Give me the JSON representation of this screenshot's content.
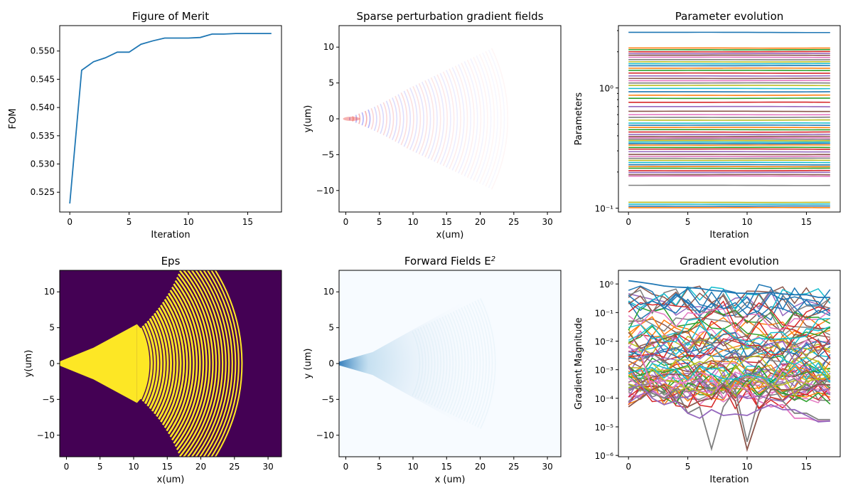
{
  "chart_data": [
    {
      "type": "line",
      "title": "Figure of Merit",
      "xlabel": "Iteration",
      "ylabel": "FOM",
      "xlim": [
        -0.85,
        17.85
      ],
      "ylim": [
        0.5215,
        0.5545
      ],
      "xticks": [
        "0",
        "5",
        "10",
        "15"
      ],
      "yticks": [
        "0.525",
        "0.530",
        "0.535",
        "0.540",
        "0.545",
        "0.550"
      ],
      "series_color": "#1f77b4",
      "x": [
        0,
        1,
        2,
        3,
        4,
        5,
        6,
        7,
        8,
        9,
        10,
        11,
        12,
        13,
        14,
        15,
        16,
        17
      ],
      "y": [
        0.523,
        0.5466,
        0.5481,
        0.5488,
        0.5498,
        0.5498,
        0.5512,
        0.5518,
        0.5523,
        0.5523,
        0.5523,
        0.5524,
        0.553,
        0.553,
        0.5531,
        0.5531,
        0.5531,
        0.5531
      ]
    },
    {
      "type": "heatmap",
      "title": "Sparse perturbation gradient fields",
      "xlabel": "x(um)",
      "ylabel": "y(um)",
      "xlim": [
        -1,
        32
      ],
      "ylim": [
        -13,
        13
      ],
      "xticks": [
        "0",
        "5",
        "10",
        "15",
        "20",
        "25",
        "30"
      ],
      "yticks": [
        "−10",
        "−5",
        "0",
        "5",
        "10"
      ],
      "colormap": "bwr",
      "colors": {
        "positive": "#e8231e",
        "negative": "#2b2bf0"
      }
    },
    {
      "type": "line",
      "title": "Parameter evolution",
      "xlabel": "Iteration",
      "ylabel": "Parameters",
      "yscale": "log",
      "xlim": [
        -0.85,
        17.85
      ],
      "ylim": [
        0.093,
        3.3
      ],
      "xticks": [
        "0",
        "5",
        "10",
        "15"
      ],
      "yticks": [
        "10⁻¹",
        "10⁰"
      ],
      "iterations": 18,
      "final_values": [
        2.9,
        2.15,
        2.08,
        2.0,
        1.93,
        1.87,
        1.8,
        1.72,
        1.65,
        1.59,
        1.53,
        1.46,
        1.4,
        1.33,
        1.26,
        1.2,
        1.15,
        1.1,
        1.05,
        0.99,
        0.93,
        0.87,
        0.82,
        0.76,
        0.7,
        0.64,
        0.6,
        0.57,
        0.54,
        0.51,
        0.49,
        0.47,
        0.45,
        0.43,
        0.41,
        0.395,
        0.385,
        0.375,
        0.365,
        0.355,
        0.345,
        0.335,
        0.32,
        0.31,
        0.295,
        0.28,
        0.27,
        0.26,
        0.25,
        0.24,
        0.23,
        0.222,
        0.215,
        0.205,
        0.198,
        0.19,
        0.185,
        0.155,
        0.112,
        0.108,
        0.104,
        0.101
      ]
    },
    {
      "type": "heatmap",
      "title": "Eps",
      "xlabel": "x(um)",
      "ylabel": "y(um)",
      "xlim": [
        -1,
        32
      ],
      "ylim": [
        -13,
        13
      ],
      "xticks": [
        "0",
        "5",
        "10",
        "15",
        "20",
        "25",
        "30"
      ],
      "yticks": [
        "−10",
        "−5",
        "0",
        "5",
        "10"
      ],
      "colormap": "viridis",
      "colors": {
        "low": "#440154",
        "high": "#fde725"
      }
    },
    {
      "type": "heatmap",
      "title": "Forward Fields E",
      "title_sup": "2",
      "xlabel": "x (um)",
      "ylabel": "y (um)",
      "xlim": [
        -1,
        32
      ],
      "ylim": [
        -13,
        13
      ],
      "xticks": [
        "0",
        "5",
        "10",
        "15",
        "20",
        "25",
        "30"
      ],
      "yticks": [
        "−10",
        "−5",
        "0",
        "5",
        "10"
      ],
      "colormap": "Blues",
      "colors": {
        "low": "#f7fbff",
        "high": "#08306b"
      }
    },
    {
      "type": "line",
      "title": "Gradient evolution",
      "xlabel": "Iteration",
      "ylabel": "Gradient Magnitude",
      "yscale": "log",
      "xlim": [
        -0.85,
        17.85
      ],
      "ylim": [
        9e-07,
        3
      ],
      "xticks": [
        "0",
        "5",
        "10",
        "15"
      ],
      "yticks": [
        "10⁻⁶",
        "10⁻⁵",
        "10⁻⁴",
        "10⁻³",
        "10⁻²",
        "10⁻¹",
        "10⁰"
      ],
      "iterations": 18,
      "highlight_series": [
        [
          1.3,
          1.15,
          1.0,
          0.85,
          0.78,
          0.75,
          0.7,
          0.6,
          0.55,
          0.48,
          0.47,
          0.46,
          0.5,
          0.45,
          0.42,
          0.42,
          0.34,
          0.34
        ],
        [
          0.006,
          0.004,
          0.0002,
          0.0001,
          0.0003,
          0.0004,
          0.0008,
          0.0006,
          0.0001,
          0.0003,
          0.0002,
          8e-05,
          5e-05,
          6e-05,
          2e-05,
          2e-05,
          1.6e-05,
          1.6e-05
        ],
        [
          0.0003,
          0.0002,
          0.00015,
          0.0001,
          0.0002,
          3e-05,
          5e-05,
          1.7e-06,
          5e-05,
          0.0002,
          3e-06,
          0.0001,
          0.0003,
          8e-05,
          3e-05,
          3e-05,
          1.8e-05,
          1.8e-05
        ],
        [
          5e-05,
          0.0001,
          0.0002,
          0.0003,
          8e-05,
          5e-05,
          8e-05,
          0.0001,
          0.0003,
          8e-05,
          1.6e-06,
          3e-05,
          0.0002,
          0.0002,
          0.0002,
          0.0002,
          0.0003,
          0.0003
        ],
        [
          0.0002,
          0.0003,
          0.0001,
          6e-05,
          8e-05,
          3e-05,
          2e-05,
          4e-05,
          2.5e-05,
          2.8e-05,
          2.5e-05,
          4e-05,
          6e-05,
          4e-05,
          4e-05,
          2.5e-05,
          1.5e-05,
          1.6e-05
        ]
      ]
    }
  ]
}
